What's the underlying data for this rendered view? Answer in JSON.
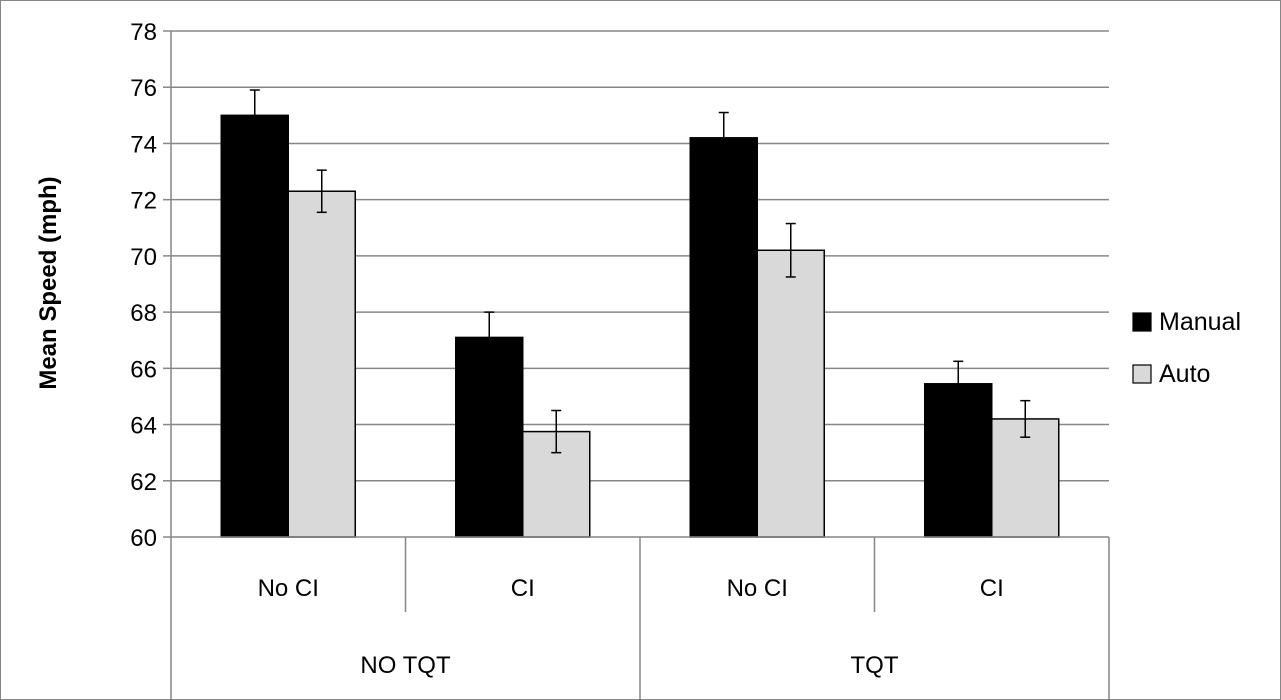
{
  "chart_data": {
    "type": "bar",
    "ylabel": "Mean Speed (mph)",
    "ylim": [
      60,
      78
    ],
    "yticks": [
      60,
      62,
      64,
      66,
      68,
      70,
      72,
      74,
      76,
      78
    ],
    "grid": true,
    "legend_position": "right",
    "groups": [
      {
        "label": "NO TQT",
        "categories": [
          "No CI",
          "CI"
        ]
      },
      {
        "label": "TQT",
        "categories": [
          "No CI",
          "CI"
        ]
      }
    ],
    "categories": [
      "No CI",
      "CI",
      "No CI",
      "CI"
    ],
    "series": [
      {
        "name": "Manual",
        "color": "#000000",
        "values": [
          75.0,
          67.1,
          74.2,
          65.45
        ],
        "errors": [
          0.9,
          0.9,
          0.9,
          0.8
        ]
      },
      {
        "name": "Auto",
        "color": "#d9d9d9",
        "values": [
          72.3,
          63.75,
          70.2,
          64.2
        ],
        "errors": [
          0.75,
          0.75,
          0.95,
          0.65
        ]
      }
    ]
  }
}
